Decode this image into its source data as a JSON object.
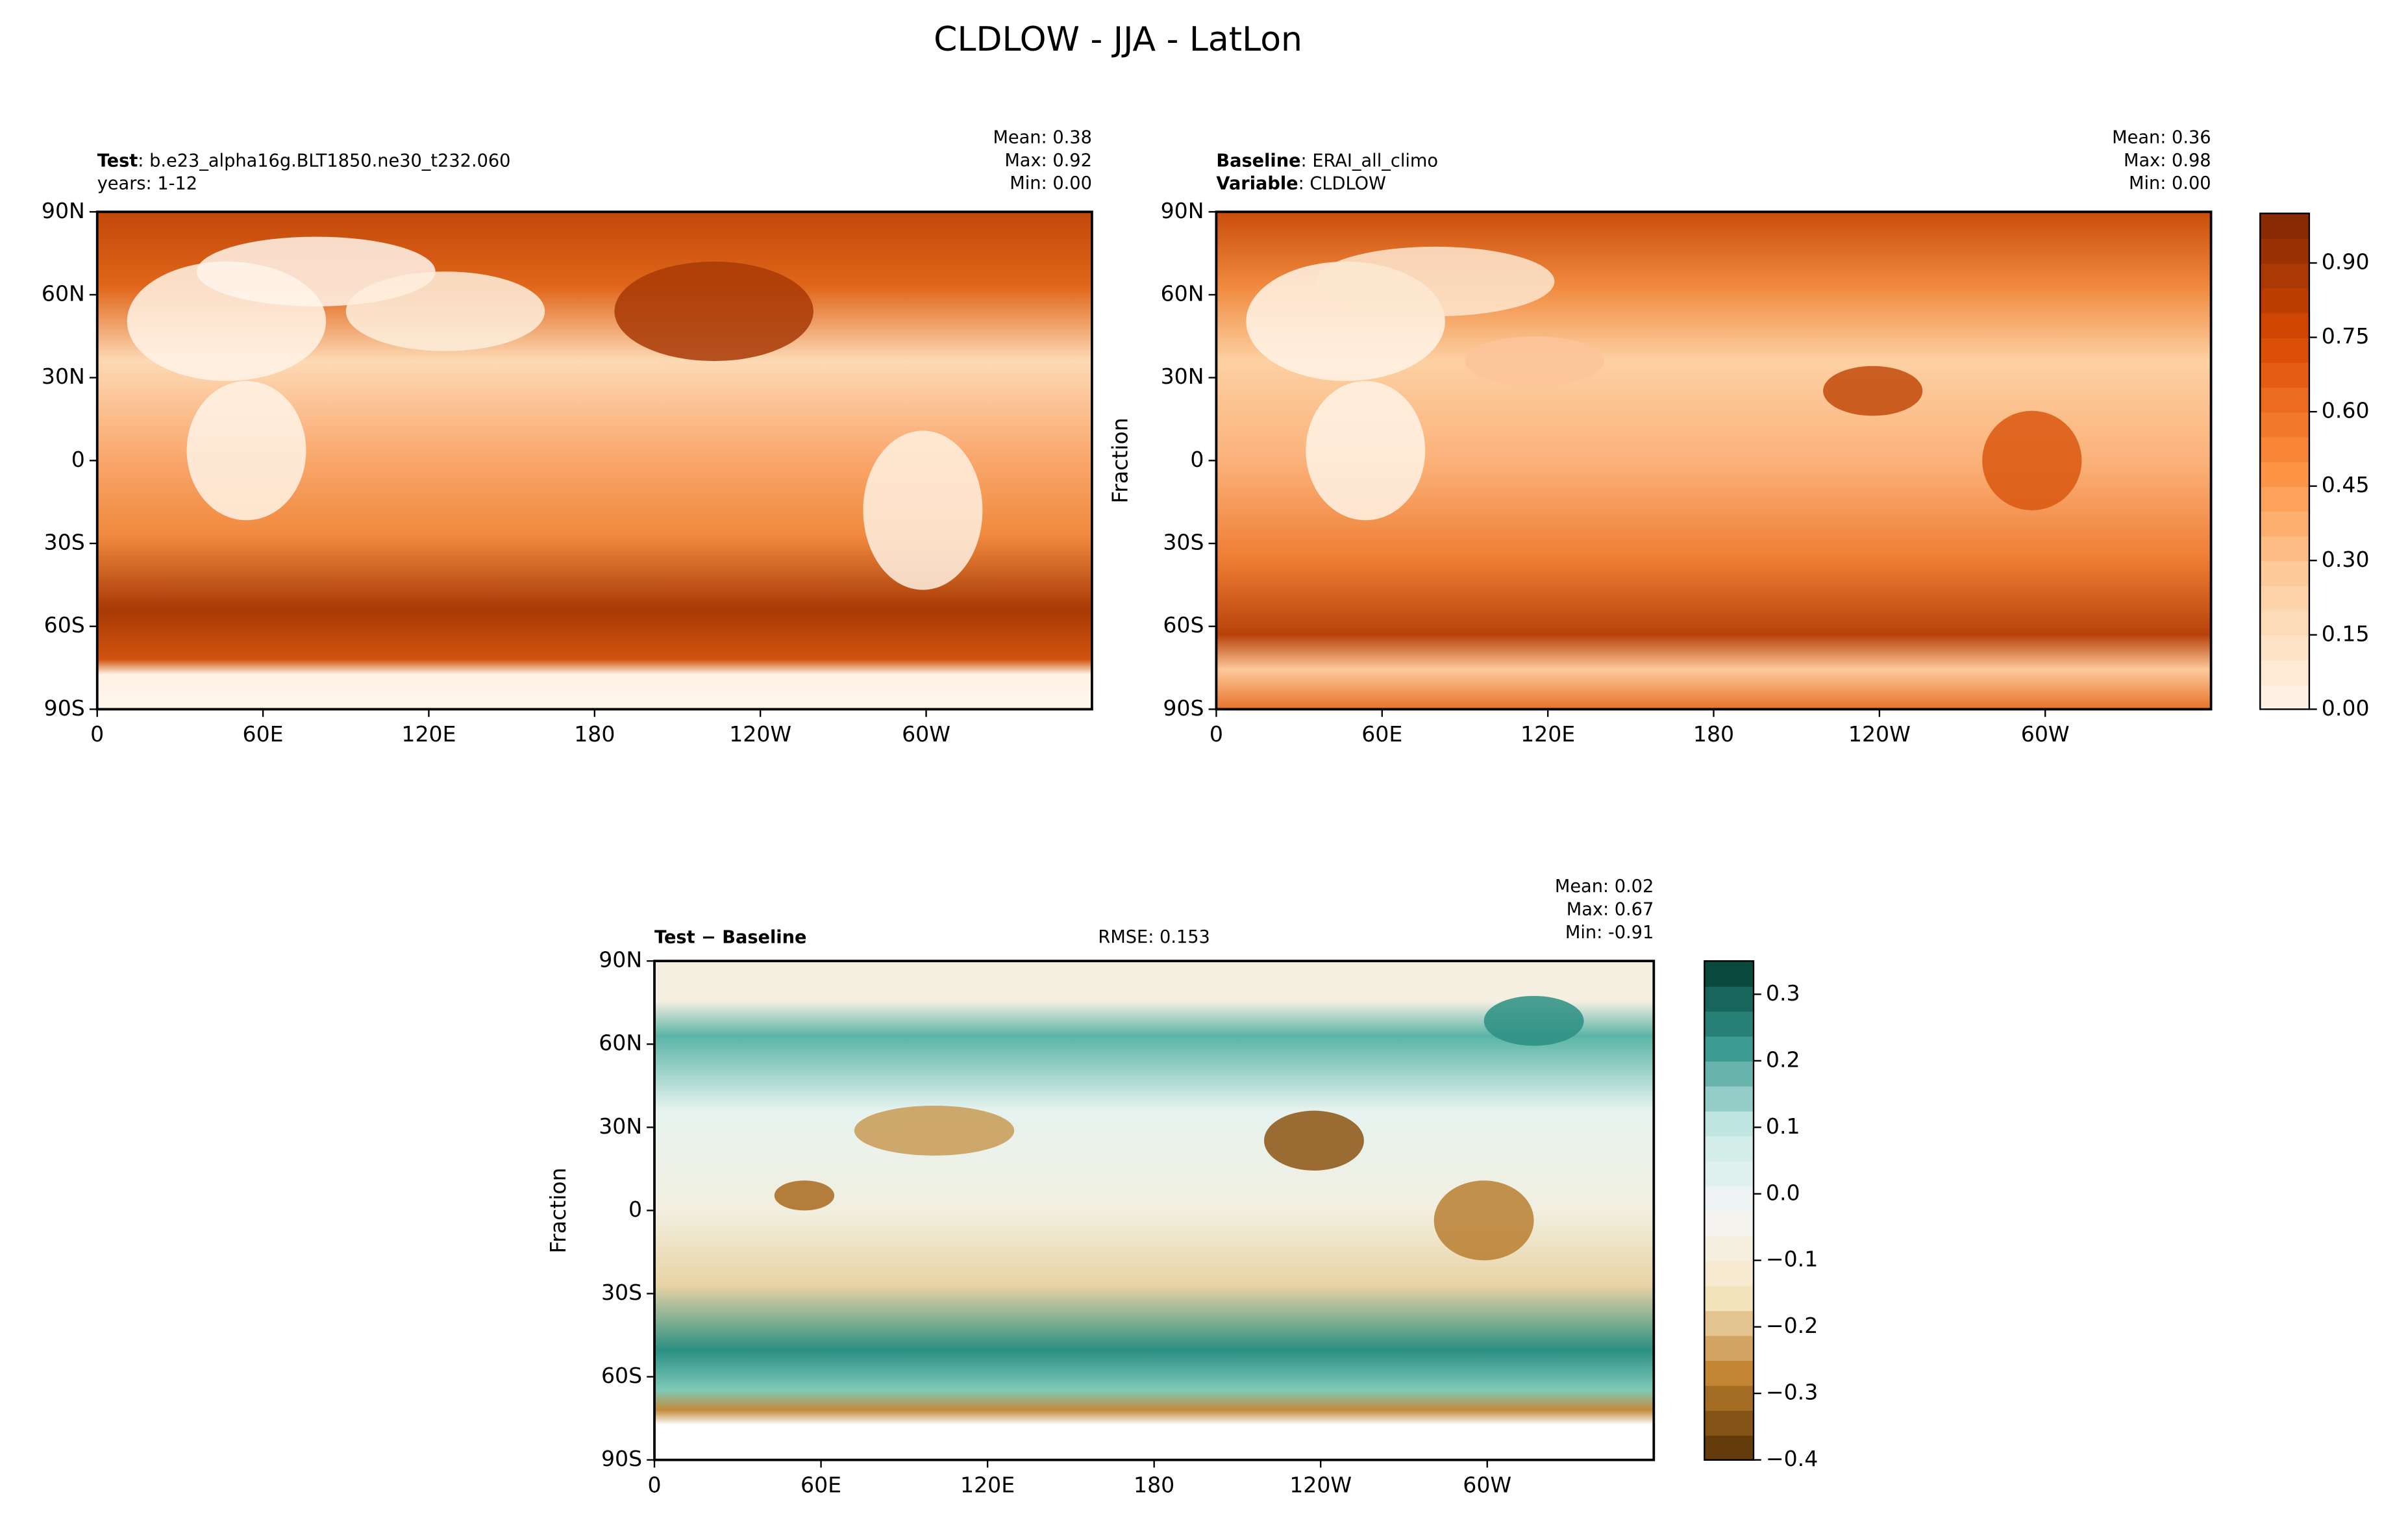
{
  "title": "CLDLOW - JJA - LatLon",
  "panels": [
    {
      "header_left": [
        {
          "key": "Test",
          "text": ": b.e23_alpha16g.BLT1850.ne30_t232.060"
        },
        {
          "text": "years: 1-12"
        }
      ],
      "stats": [
        "Mean:  0.38",
        "Max:  0.92",
        "Min:  0.00"
      ]
    },
    {
      "header_left": [
        {
          "key": "Baseline",
          "text": ": ERAI_all_climo"
        },
        {
          "key": "Variable",
          "text": ": CLDLOW"
        }
      ],
      "stats": [
        "Mean:  0.36",
        "Max:  0.98",
        "Min:  0.00"
      ],
      "ylabel": "Fraction"
    },
    {
      "header_left": [
        {
          "key": "Test − Baseline"
        }
      ],
      "header_center": "RMSE: 0.153",
      "stats": [
        "Mean:  0.02",
        "Max:  0.67",
        "Min: -0.91"
      ],
      "ylabel": "Fraction"
    }
  ],
  "xlim": [
    0,
    360
  ],
  "xticks": [
    0,
    {
      "value": 60,
      "label": "60E"
    },
    {
      "value": 120,
      "label": "120E"
    },
    180,
    {
      "value": 240,
      "label": "120W"
    },
    {
      "value": 300,
      "label": "60W"
    }
  ],
  "ylim": [
    -90,
    90
  ],
  "yticks": [
    {
      "value": 90,
      "label": "90N"
    },
    {
      "value": 60,
      "label": "60N"
    },
    {
      "value": 30,
      "label": "30N"
    },
    0,
    {
      "value": -30,
      "label": "30S"
    },
    {
      "value": -60,
      "label": "60S"
    },
    {
      "value": -90,
      "label": "90S"
    }
  ],
  "colorbars": [
    {
      "lim": [
        0,
        1.0
      ],
      "ticks": [
        {
          "value": 0,
          "label": "0.00"
        },
        {
          "value": 0.15,
          "label": "0.15"
        },
        {
          "value": 0.3,
          "label": "0.30"
        },
        {
          "value": 0.45,
          "label": "0.45"
        },
        {
          "value": 0.6,
          "label": "0.60"
        },
        {
          "value": 0.75,
          "label": "0.75"
        },
        {
          "value": 0.9,
          "label": "0.90"
        }
      ]
    },
    {
      "lim": [
        -0.4,
        0.35
      ],
      "ticks": [
        {
          "value": -0.4,
          "label": "−0.4"
        },
        {
          "value": -0.3,
          "label": "−0.3"
        },
        {
          "value": -0.2,
          "label": "−0.2"
        },
        {
          "value": -0.1,
          "label": "−0.1"
        },
        {
          "value": 0,
          "label": "0.0"
        },
        0.1,
        0.2,
        0.3
      ]
    }
  ]
}
